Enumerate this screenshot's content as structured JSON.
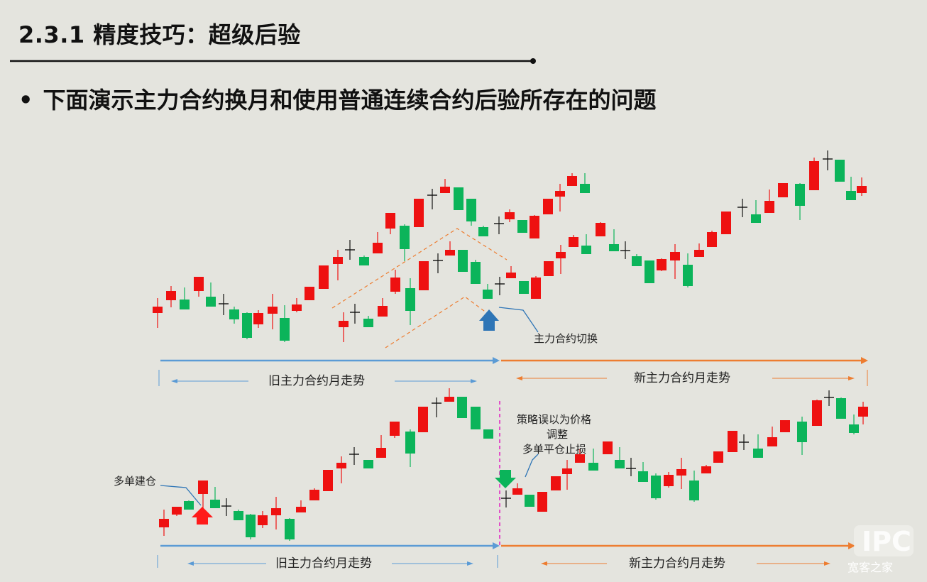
{
  "slide": {
    "title": "2.3.1 精度技巧：超级后验",
    "bullet_marker": "•",
    "bullet_text": "下面演示主力合约换月和使用普通连续合约后验所存在的问题"
  },
  "top_chart": {
    "switch_label": "主力合约切换",
    "old_trend_label": "旧主力合约月走势",
    "new_trend_label": "新主力合约月走势"
  },
  "bottom_chart": {
    "entry_label": "多单建仓",
    "stop_label_lines": [
      "策略误以为价格",
      "调整",
      "多单平仓止损"
    ],
    "old_trend_label": "旧主力合约月走势",
    "new_trend_label": "新主力合约月走势"
  },
  "colors": {
    "up": "#ee1111",
    "down": "#0bb45a",
    "old_trend": "#5b9bd5",
    "new_trend": "#ed7d31",
    "switch_marker": "#2e75b6",
    "divider": "#e020c0"
  },
  "icons": {
    "switch_arrow": "up-arrow-icon",
    "entry_arrow": "up-arrow-icon",
    "stop_arrow": "down-arrow-icon"
  },
  "watermark": {
    "text": "宽客之家"
  }
}
